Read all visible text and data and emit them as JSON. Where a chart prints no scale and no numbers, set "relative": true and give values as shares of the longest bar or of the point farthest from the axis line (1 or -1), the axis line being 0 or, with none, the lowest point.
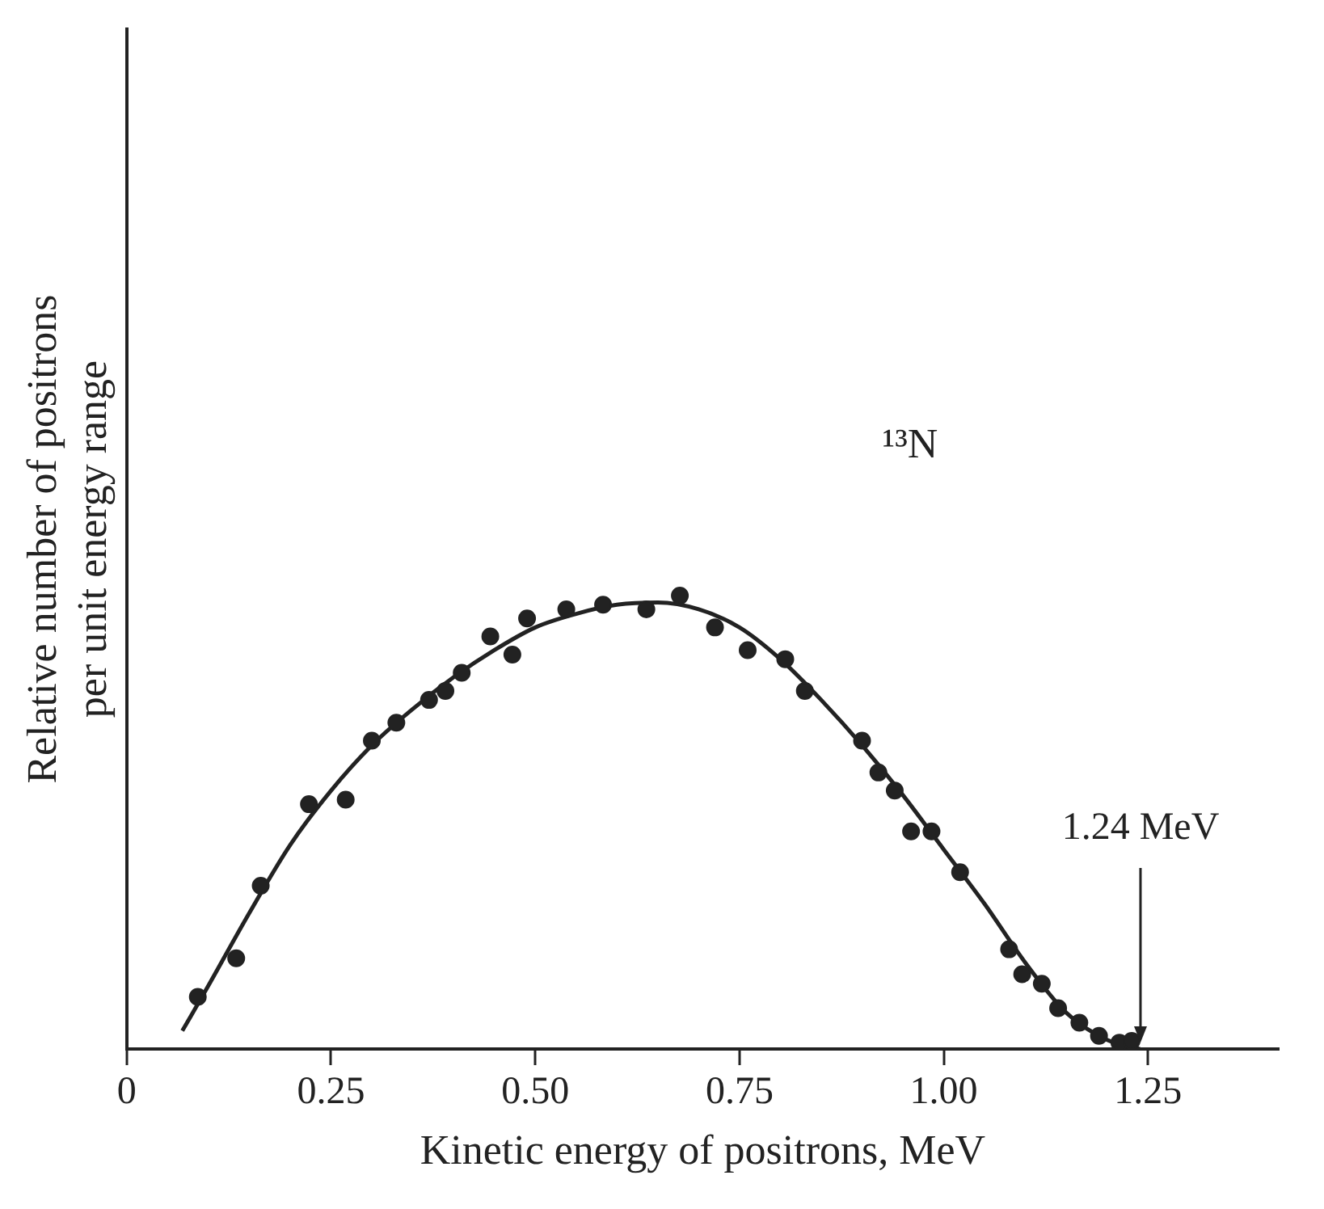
{
  "chart_data": {
    "type": "scatter",
    "xlabel": "Kinetic energy of positrons, MeV",
    "ylabel": "Relative number of positrons per unit energy range",
    "relative": true,
    "xlim": [
      0,
      1.41
    ],
    "xticks": [
      0,
      {
        "value": 0.25,
        "label": "0.25"
      },
      {
        "value": 0.5,
        "label": "0.50"
      },
      {
        "value": 0.75,
        "label": "0.75"
      },
      {
        "value": 1,
        "label": "1.00"
      },
      {
        "value": 1.25,
        "label": "1.25"
      }
    ],
    "grid": false,
    "legend": false,
    "annotations": [
      "¹³N",
      "1.24 MeV"
    ],
    "series": [
      {
        "color": "#222222",
        "marker": "circle",
        "x": [
          0.087,
          0.134,
          0.164,
          0.223,
          0.268,
          0.3,
          0.33,
          0.37,
          0.39,
          0.41,
          0.445,
          0.472,
          0.49,
          0.538,
          0.583,
          0.636,
          0.677,
          0.72,
          0.76,
          0.806,
          0.83,
          0.9,
          0.92,
          0.94,
          0.96,
          0.985,
          1.02,
          1.08,
          1.096,
          1.12,
          1.14,
          1.166,
          1.19,
          1.215,
          1.23
        ],
        "values": [
          0.115,
          0.2,
          0.36,
          0.54,
          0.55,
          0.68,
          0.72,
          0.77,
          0.79,
          0.83,
          0.91,
          0.87,
          0.95,
          0.97,
          0.98,
          0.97,
          1.0,
          0.93,
          0.88,
          0.86,
          0.79,
          0.68,
          0.61,
          0.57,
          0.48,
          0.48,
          0.39,
          0.22,
          0.165,
          0.144,
          0.09,
          0.058,
          0.029,
          0.014,
          0.018
        ]
      },
      {
        "type": "line",
        "color": "#222222",
        "marker": "none",
        "line_style": "solid",
        "x": [
          0.068,
          0.1,
          0.15,
          0.2,
          0.25,
          0.3,
          0.35,
          0.4,
          0.45,
          0.5,
          0.55,
          0.6,
          0.65,
          0.7,
          0.75,
          0.8,
          0.85,
          0.9,
          0.95,
          1.0,
          1.05,
          1.1,
          1.15,
          1.2,
          1.24
        ],
        "values": [
          0.04,
          0.14,
          0.3,
          0.45,
          0.57,
          0.67,
          0.75,
          0.82,
          0.88,
          0.93,
          0.96,
          0.98,
          0.985,
          0.97,
          0.93,
          0.86,
          0.77,
          0.67,
          0.56,
          0.44,
          0.32,
          0.19,
          0.08,
          0.02,
          0
        ]
      }
    ]
  }
}
